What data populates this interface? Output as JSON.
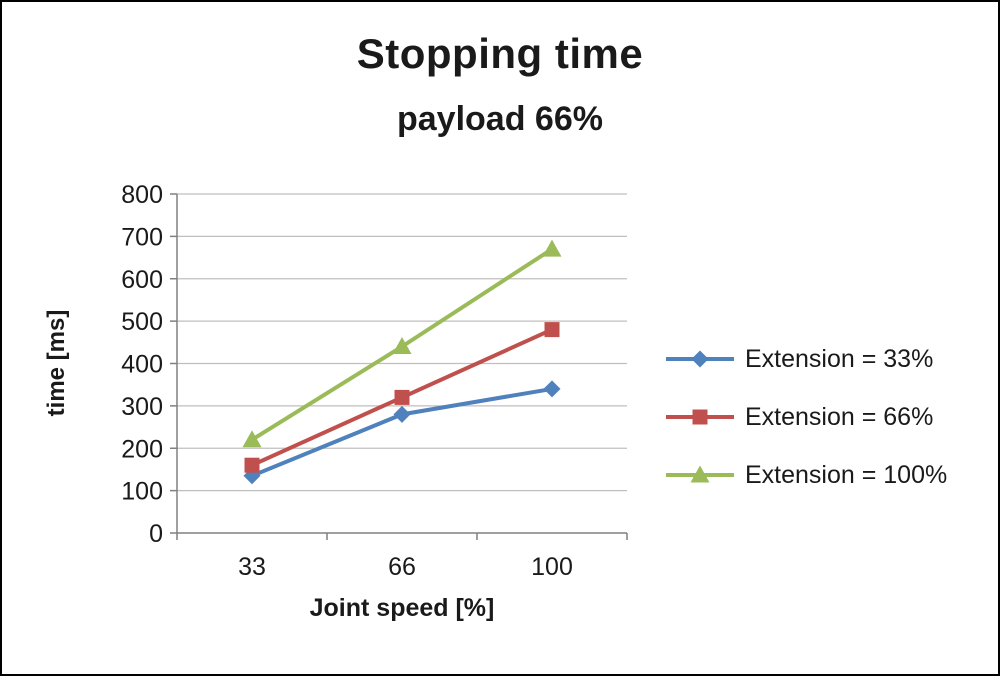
{
  "chart_data": {
    "type": "line",
    "title": "Stopping time",
    "subtitle": "payload 66%",
    "xlabel": "Joint speed [%]",
    "ylabel": "time [ms]",
    "categories": [
      "33",
      "66",
      "100"
    ],
    "x": [
      33,
      66,
      100
    ],
    "series": [
      {
        "name": "Extension = 33%",
        "values": [
          135,
          280,
          340
        ],
        "color": "#4F81BD",
        "marker": "diamond"
      },
      {
        "name": "Extension = 66%",
        "values": [
          160,
          320,
          480
        ],
        "color": "#C0504D",
        "marker": "square"
      },
      {
        "name": "Extension = 100%",
        "values": [
          220,
          440,
          670
        ],
        "color": "#9BBB59",
        "marker": "triangle"
      }
    ],
    "ylim": [
      0,
      800
    ],
    "yticks": [
      0,
      100,
      200,
      300,
      400,
      500,
      600,
      700,
      800
    ],
    "grid": "horizontal",
    "legend_position": "right",
    "grid_color": "#BFBFBF",
    "axis_color": "#808080",
    "text_color": "#1a1a1a",
    "background_color": "#ffffff",
    "frame_border_color": "#000000"
  }
}
